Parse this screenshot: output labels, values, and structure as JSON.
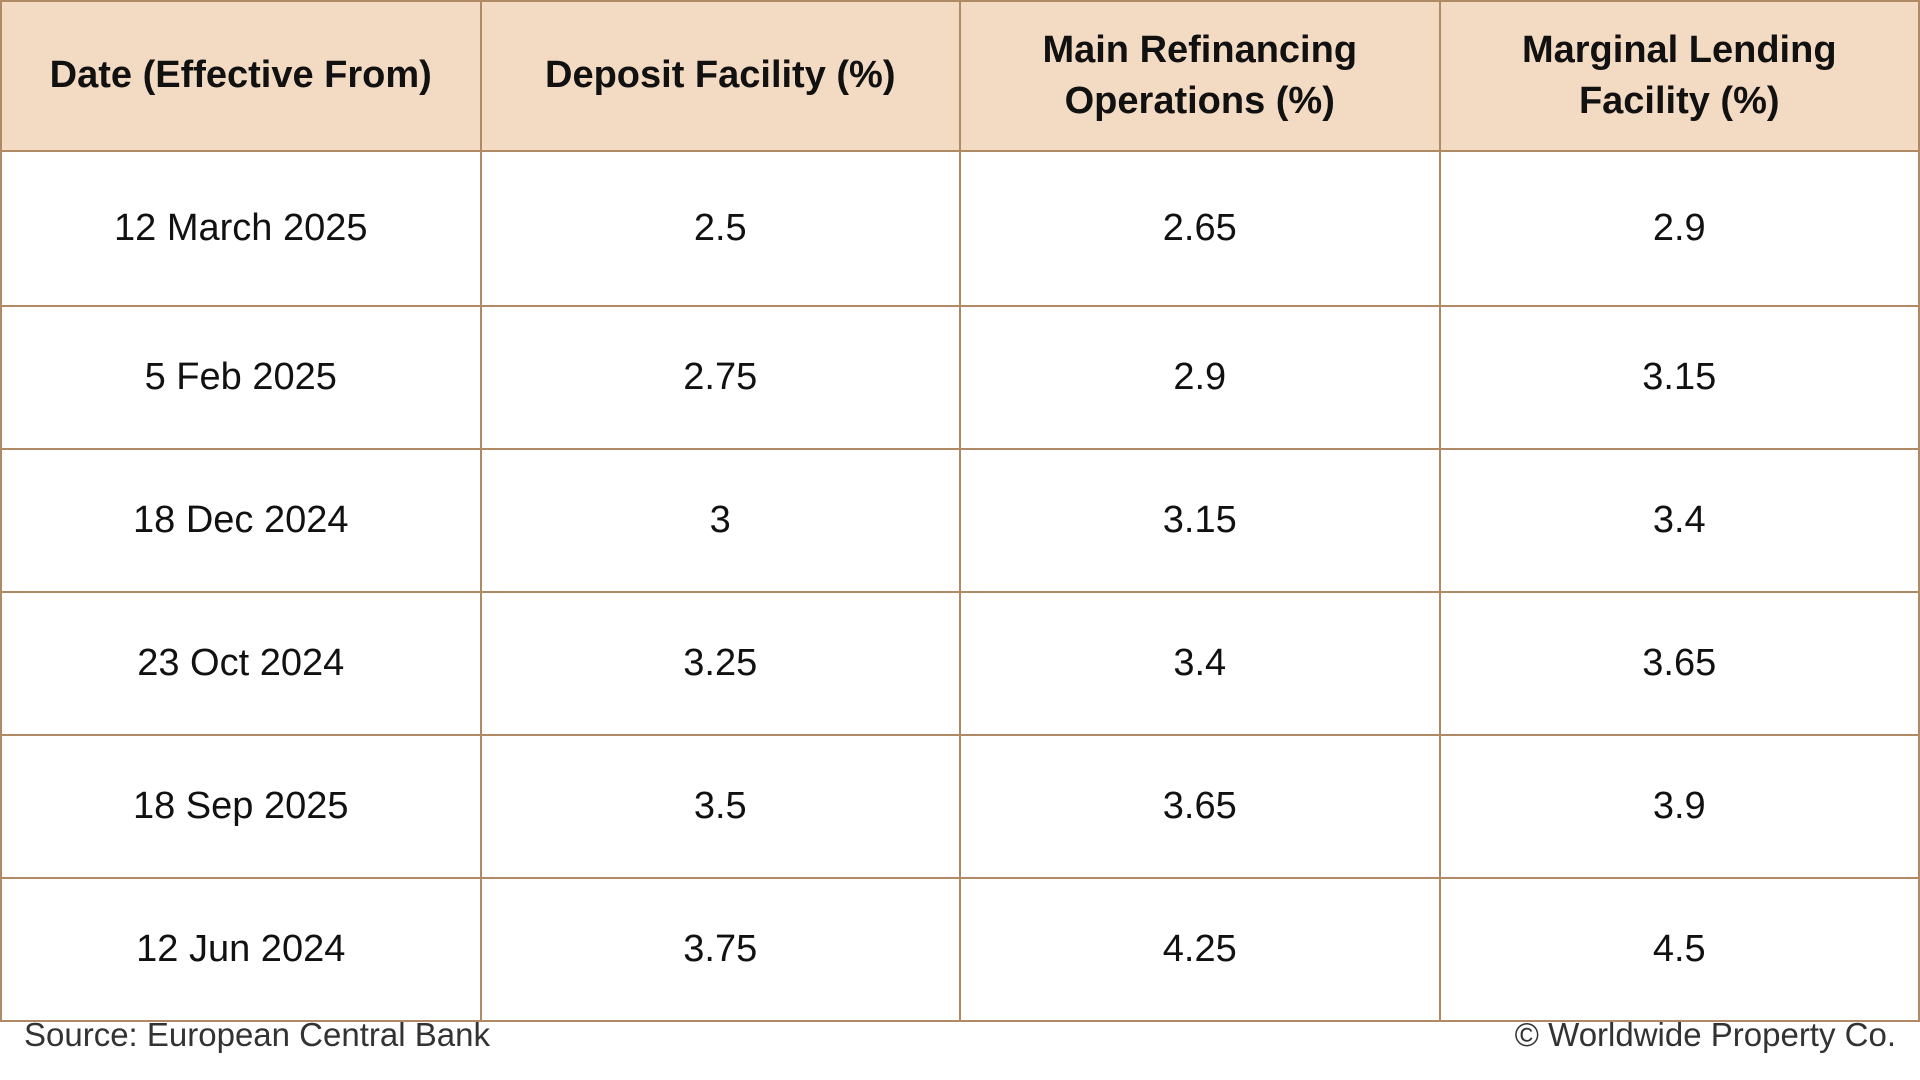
{
  "table": {
    "headers": [
      "Date (Effective From)",
      "Deposit Facility (%)",
      "Main Refinancing Operations (%)",
      "Marginal Lending Facility (%)"
    ],
    "rows": [
      [
        "12 March 2025",
        "2.5",
        "2.65",
        "2.9"
      ],
      [
        "5 Feb 2025",
        "2.75",
        "2.9",
        "3.15"
      ],
      [
        "18 Dec 2024",
        "3",
        "3.15",
        "3.4"
      ],
      [
        "23 Oct 2024",
        "3.25",
        "3.4",
        "3.65"
      ],
      [
        "18 Sep 2025",
        "3.5",
        "3.65",
        "3.9"
      ],
      [
        "12 Jun 2024",
        "3.75",
        "4.25",
        "4.5"
      ]
    ]
  },
  "footer": {
    "source": "Source: European Central Bank",
    "copyright": "© Worldwide Property Co."
  }
}
